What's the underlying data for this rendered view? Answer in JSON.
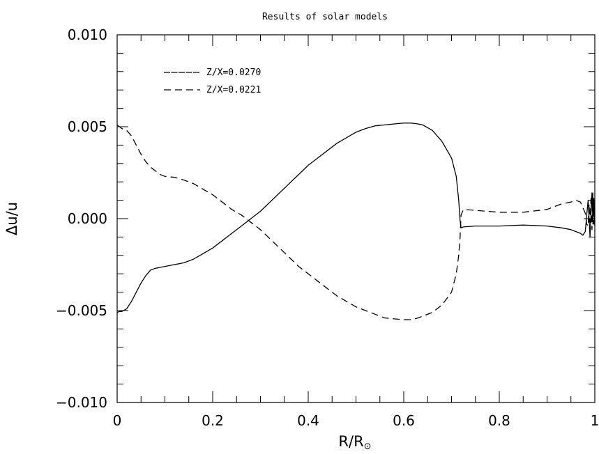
{
  "chart_data": {
    "type": "line",
    "title": "Results of solar models",
    "xlabel": "R/R",
    "xlabel_subscript": "⊙",
    "ylabel": "Δu/u",
    "xlim": [
      0,
      1
    ],
    "ylim": [
      -0.01,
      0.01
    ],
    "x_ticks": [
      0,
      0.2,
      0.4,
      0.6,
      0.8,
      1
    ],
    "x_tick_labels": [
      "0",
      "0.2",
      "0.4",
      "0.6",
      "0.8",
      "1"
    ],
    "y_ticks": [
      -0.01,
      -0.005,
      0.0,
      0.005,
      0.01
    ],
    "y_tick_labels": [
      "−0.010",
      "−0.005",
      "0.000",
      "0.005",
      "0.010"
    ],
    "grid": false,
    "legend_position": "top-left",
    "series": [
      {
        "name": "Z/X=0.0270",
        "style": "solid",
        "color": "#000000",
        "x": [
          0.0,
          0.005,
          0.01,
          0.02,
          0.03,
          0.04,
          0.05,
          0.06,
          0.07,
          0.08,
          0.09,
          0.1,
          0.12,
          0.14,
          0.16,
          0.18,
          0.2,
          0.22,
          0.24,
          0.26,
          0.28,
          0.3,
          0.32,
          0.34,
          0.36,
          0.38,
          0.4,
          0.42,
          0.44,
          0.46,
          0.48,
          0.5,
          0.52,
          0.54,
          0.56,
          0.58,
          0.6,
          0.615,
          0.63,
          0.64,
          0.66,
          0.68,
          0.7,
          0.71,
          0.715,
          0.718,
          0.72,
          0.725,
          0.75,
          0.8,
          0.85,
          0.9,
          0.93,
          0.95,
          0.96,
          0.97,
          0.975,
          0.98,
          0.983,
          0.986,
          0.988,
          0.99,
          0.992,
          0.994,
          0.996,
          0.998,
          1.0
        ],
        "y": [
          -0.0051,
          -0.00505,
          -0.00505,
          -0.0049,
          -0.0045,
          -0.004,
          -0.0035,
          -0.0031,
          -0.0028,
          -0.0027,
          -0.00265,
          -0.0026,
          -0.0025,
          -0.0024,
          -0.0022,
          -0.0019,
          -0.0016,
          -0.0012,
          -0.0008,
          -0.0004,
          0.0,
          0.0004,
          0.0009,
          0.0014,
          0.0019,
          0.0024,
          0.0029,
          0.0033,
          0.0037,
          0.0041,
          0.0044,
          0.0047,
          0.0049,
          0.00505,
          0.0051,
          0.00515,
          0.0052,
          0.0052,
          0.00515,
          0.0051,
          0.0048,
          0.0042,
          0.0033,
          0.0023,
          0.001,
          -0.0001,
          -0.0005,
          -0.00045,
          -0.0004,
          -0.0004,
          -0.00035,
          -0.0004,
          -0.0005,
          -0.0006,
          -0.0007,
          -0.0008,
          -0.0009,
          -0.0007,
          0.0002,
          0.001,
          0.0,
          -0.001,
          0.0002,
          0.0014,
          -0.0003,
          0.0011,
          -0.0004
        ]
      },
      {
        "name": "Z/X=0.0221",
        "style": "dashed",
        "color": "#000000",
        "x": [
          0.0,
          0.01,
          0.02,
          0.03,
          0.04,
          0.05,
          0.06,
          0.07,
          0.08,
          0.09,
          0.1,
          0.12,
          0.14,
          0.16,
          0.18,
          0.2,
          0.22,
          0.24,
          0.26,
          0.28,
          0.3,
          0.32,
          0.34,
          0.36,
          0.38,
          0.4,
          0.42,
          0.44,
          0.46,
          0.48,
          0.5,
          0.52,
          0.54,
          0.56,
          0.58,
          0.6,
          0.615,
          0.63,
          0.64,
          0.66,
          0.68,
          0.7,
          0.71,
          0.715,
          0.718,
          0.72,
          0.725,
          0.75,
          0.8,
          0.85,
          0.9,
          0.93,
          0.95,
          0.96,
          0.97,
          0.975,
          0.98,
          0.983,
          0.986,
          0.988,
          0.99,
          0.992,
          0.994,
          0.996,
          0.998,
          1.0
        ],
        "y": [
          0.0051,
          0.0049,
          0.0048,
          0.0045,
          0.004,
          0.0035,
          0.0031,
          0.0028,
          0.0026,
          0.0024,
          0.0023,
          0.00225,
          0.0021,
          0.0019,
          0.0016,
          0.0013,
          0.0009,
          0.0005,
          0.0002,
          -0.0002,
          -0.0006,
          -0.0011,
          -0.0016,
          -0.0021,
          -0.0026,
          -0.003,
          -0.0034,
          -0.0038,
          -0.0042,
          -0.0045,
          -0.0048,
          -0.005,
          -0.0052,
          -0.0054,
          -0.00545,
          -0.0055,
          -0.0055,
          -0.0054,
          -0.0053,
          -0.0051,
          -0.0047,
          -0.004,
          -0.003,
          -0.002,
          -0.001,
          0.0002,
          0.0005,
          0.00045,
          0.00035,
          0.00035,
          0.0005,
          0.0008,
          0.0009,
          0.001,
          0.0009,
          0.0006,
          0.0003,
          -0.0003,
          -0.0004,
          0.0008,
          -0.0002,
          0.0011,
          -0.0006,
          0.0014,
          -0.0003,
          0.0005
        ]
      }
    ]
  }
}
